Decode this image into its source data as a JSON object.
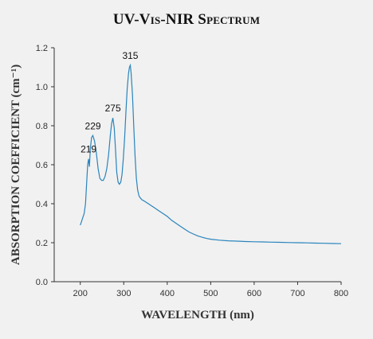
{
  "chart_data": {
    "type": "line",
    "title": "UV-Vis-NIR Spectrum",
    "xlabel": "WAVELENGTH (nm)",
    "ylabel": "ABSORPTION COEFFICIENT (cm⁻¹)",
    "xlim": [
      140,
      800
    ],
    "ylim": [
      0.0,
      1.2
    ],
    "xticks": [
      200,
      300,
      400,
      500,
      600,
      700,
      800
    ],
    "yticks": [
      "0.0",
      "0.2",
      "0.4",
      "0.6",
      "0.8",
      "1.0",
      "1.2"
    ],
    "grid": false,
    "annotations": [
      {
        "text": "219",
        "x": 219,
        "y": 0.63
      },
      {
        "text": "229",
        "x": 229,
        "y": 0.75
      },
      {
        "text": "275",
        "x": 275,
        "y": 0.84
      },
      {
        "text": "315",
        "x": 315,
        "y": 1.11
      }
    ],
    "series": [
      {
        "color": "#2a84bd",
        "x": [
          200,
          203,
          206,
          209,
          212,
          215,
          217,
          219,
          221,
          223,
          226,
          229,
          233,
          237,
          241,
          245,
          249,
          253,
          257,
          261,
          265,
          269,
          272,
          275,
          278,
          281,
          284,
          287,
          290,
          293,
          296,
          299,
          302,
          305,
          308,
          311,
          313,
          315,
          317,
          320,
          323,
          326,
          329,
          332,
          335,
          338,
          342,
          346,
          350,
          360,
          370,
          380,
          390,
          400,
          410,
          420,
          430,
          440,
          450,
          460,
          470,
          480,
          490,
          500,
          520,
          540,
          560,
          580,
          600,
          620,
          640,
          660,
          680,
          700,
          720,
          740,
          760,
          780,
          800
        ],
        "y": [
          0.29,
          0.31,
          0.33,
          0.35,
          0.4,
          0.52,
          0.6,
          0.63,
          0.59,
          0.68,
          0.74,
          0.75,
          0.72,
          0.66,
          0.58,
          0.53,
          0.52,
          0.52,
          0.54,
          0.58,
          0.65,
          0.75,
          0.81,
          0.84,
          0.79,
          0.68,
          0.56,
          0.51,
          0.5,
          0.51,
          0.55,
          0.63,
          0.74,
          0.87,
          0.99,
          1.07,
          1.1,
          1.11,
          1.07,
          0.96,
          0.8,
          0.64,
          0.53,
          0.47,
          0.44,
          0.43,
          0.42,
          0.415,
          0.41,
          0.395,
          0.38,
          0.365,
          0.35,
          0.335,
          0.315,
          0.3,
          0.285,
          0.27,
          0.255,
          0.245,
          0.235,
          0.228,
          0.222,
          0.218,
          0.213,
          0.21,
          0.208,
          0.206,
          0.205,
          0.204,
          0.203,
          0.202,
          0.201,
          0.2,
          0.199,
          0.198,
          0.197,
          0.196,
          0.195
        ]
      }
    ]
  }
}
